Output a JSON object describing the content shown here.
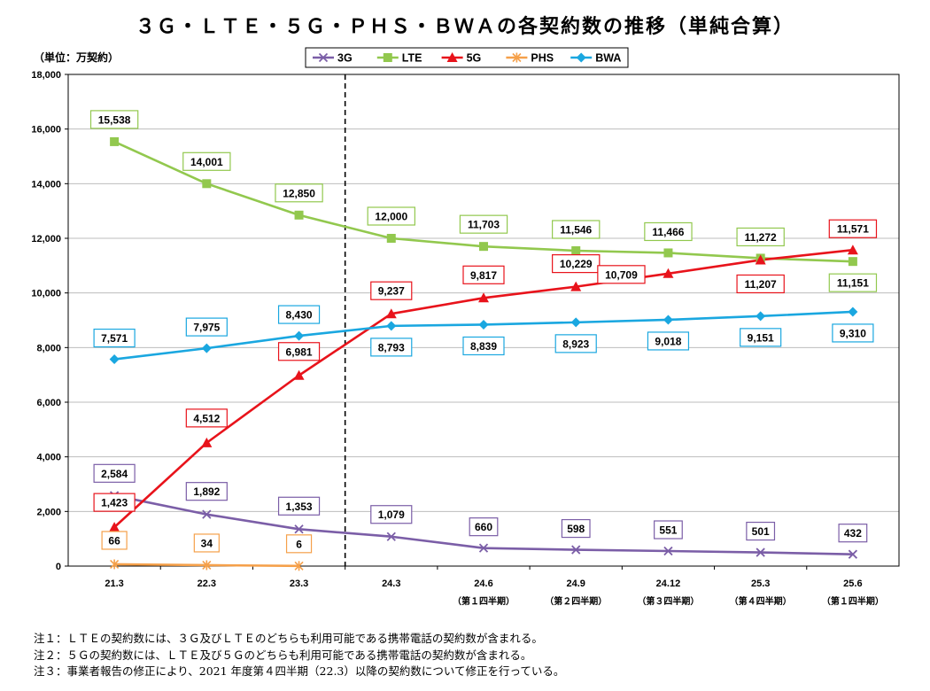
{
  "title": "３Ｇ・ＬＴＥ・５Ｇ・ＰＨＳ・ＢＷＡの各契約数の推移（単純合算）",
  "unit_label": "（単位：万契約）",
  "notes": [
    "注１：ＬＴＥの契約数には、３Ｇ及びＬＴＥのどちらも利用可能である携帯電話の契約数が含まれる。",
    "注２：５Ｇの契約数には、ＬＴＥ及び５Ｇのどちらも利用可能である携帯電話の契約数が含まれる。",
    "注３：事業者報告の修正により、2021 年度第４四半期（22.3）以降の契約数について修正を行っている。"
  ],
  "chart_data": {
    "type": "line",
    "categories": [
      "21.3",
      "22.3",
      "23.3",
      "24.3",
      "24.6",
      "24.9",
      "24.12",
      "25.3",
      "25.6"
    ],
    "category_sublabels": [
      "",
      "",
      "",
      "",
      "（第１四半期）",
      "（第２四半期）",
      "（第３四半期）",
      "（第４四半期）",
      "（第１四半期）"
    ],
    "ylim": [
      0,
      18000
    ],
    "yticks": [
      0,
      2000,
      4000,
      6000,
      8000,
      10000,
      12000,
      14000,
      16000,
      18000
    ],
    "ytick_labels": [
      "0",
      "2,000",
      "4,000",
      "6,000",
      "8,000",
      "10,000",
      "12,000",
      "14,000",
      "16,000",
      "18,000"
    ],
    "divider_after_category": "23.3",
    "legend_position": "top-center",
    "series": [
      {
        "name": "3G",
        "color": "#7b5ea7",
        "marker": "x",
        "values": [
          2584,
          1892,
          1353,
          1079,
          660,
          598,
          551,
          501,
          432
        ],
        "labels": [
          "2,584",
          "1,892",
          "1,353",
          "1,079",
          "660",
          "598",
          "551",
          "501",
          "432"
        ]
      },
      {
        "name": "LTE",
        "color": "#92c84e",
        "marker": "square",
        "values": [
          15538,
          14001,
          12850,
          12000,
          11703,
          11546,
          11466,
          11272,
          11151
        ],
        "labels": [
          "15,538",
          "14,001",
          "12,850",
          "12,000",
          "11,703",
          "11,546",
          "11,466",
          "11,272",
          "11,151"
        ]
      },
      {
        "name": "5G",
        "color": "#e8131b",
        "marker": "triangle",
        "values": [
          1423,
          4512,
          6981,
          9237,
          9817,
          10229,
          10709,
          11207,
          11571
        ],
        "labels": [
          "1,423",
          "4,512",
          "6,981",
          "9,237",
          "9,817",
          "10,229",
          "10,709",
          "11,207",
          "11,571"
        ]
      },
      {
        "name": "PHS",
        "color": "#f5a04a",
        "marker": "star",
        "values": [
          66,
          34,
          6,
          null,
          null,
          null,
          null,
          null,
          null
        ],
        "labels": [
          "66",
          "34",
          "6",
          "",
          "",
          "",
          "",
          "",
          ""
        ]
      },
      {
        "name": "BWA",
        "color": "#1aa7e0",
        "marker": "diamond",
        "values": [
          7571,
          7975,
          8430,
          8793,
          8839,
          8923,
          9018,
          9151,
          9310
        ],
        "labels": [
          "7,571",
          "7,975",
          "8,430",
          "8,793",
          "8,839",
          "8,923",
          "9,018",
          "9,151",
          "9,310"
        ]
      }
    ]
  }
}
